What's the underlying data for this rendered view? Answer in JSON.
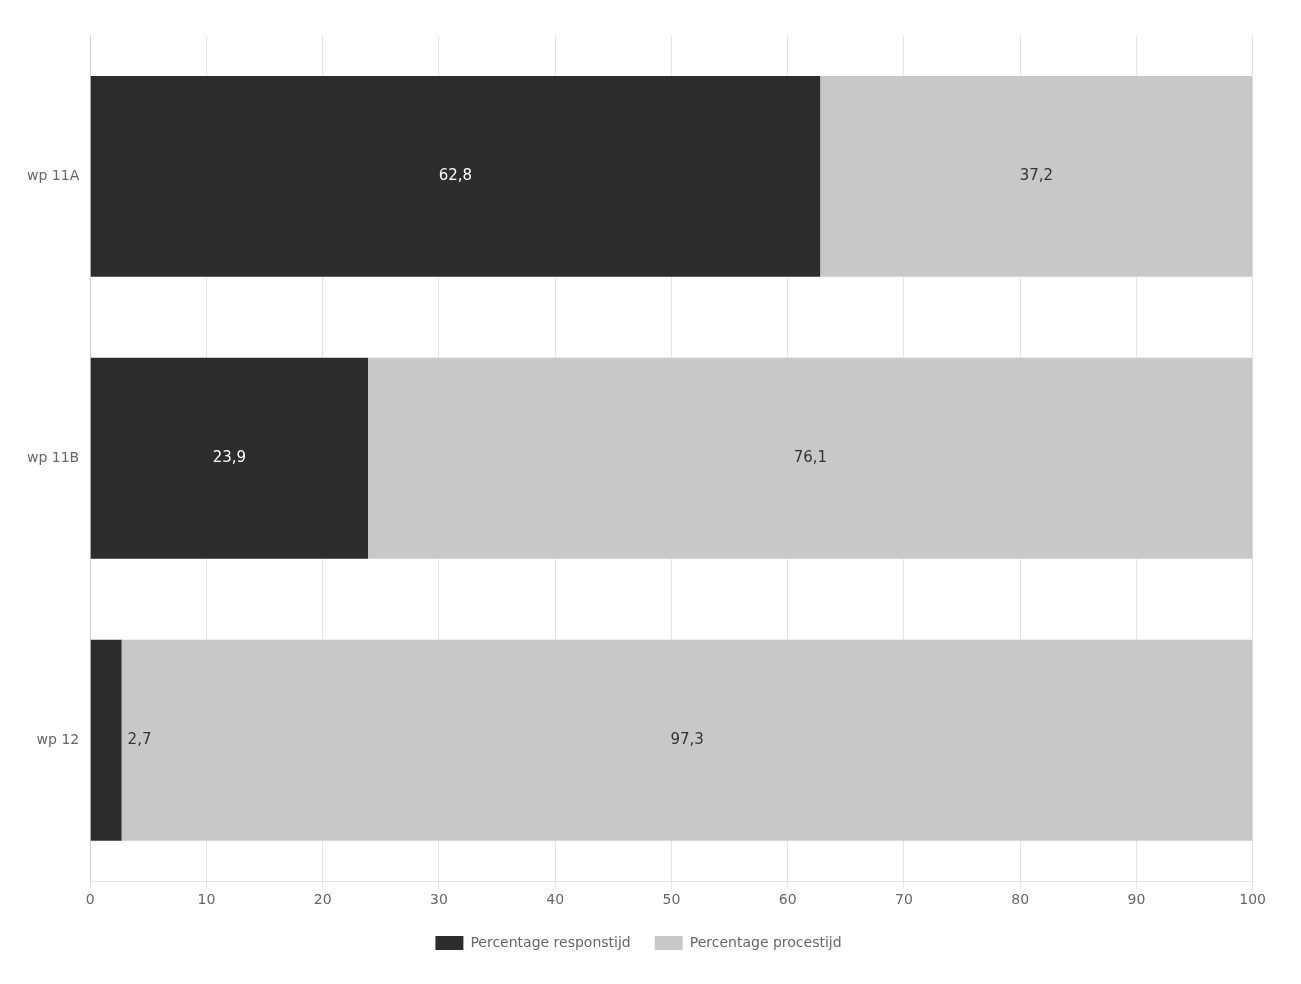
{
  "chart_data": {
    "type": "bar",
    "orientation": "horizontal",
    "stacked": true,
    "categories": [
      "wp 11A",
      "wp 11B",
      "wp 12"
    ],
    "series": [
      {
        "name": "Percentage responstijd",
        "color": "#2d2d2d",
        "values": [
          62.8,
          23.9,
          2.7
        ],
        "value_labels": [
          "62,8",
          "23,9",
          "2,7"
        ]
      },
      {
        "name": "Percentage procestijd",
        "color": "#c8c8c8",
        "values": [
          37.2,
          76.1,
          97.3
        ],
        "value_labels": [
          "37,2",
          "76,1",
          "97,3"
        ]
      }
    ],
    "xlim": [
      0,
      100
    ],
    "xticks": [
      0,
      10,
      20,
      30,
      40,
      50,
      60,
      70,
      80,
      90,
      100
    ],
    "grid": true,
    "legend": "bottom",
    "data_labels": true
  }
}
